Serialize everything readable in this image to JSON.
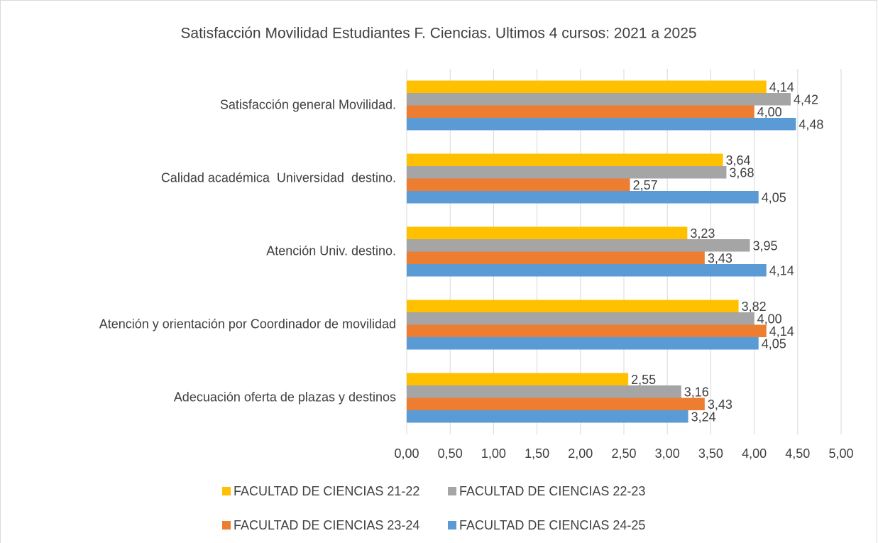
{
  "chart_data": {
    "type": "hbar",
    "title": "Satisfacción Movilidad Estudiantes F. Ciencias. Ultimos 4 cursos: 2021 a 2025",
    "categories": [
      "Satisfacción general Movilidad.",
      "Calidad académica  Universidad  destino.",
      "Atención Univ. destino.",
      "Atención y orientación por Coordinador de movilidad",
      "Adecuación oferta de plazas y destinos"
    ],
    "series": [
      {
        "name": "FACULTAD DE CIENCIAS 21-22",
        "color": "#FFC000",
        "values": [
          4.14,
          3.64,
          3.23,
          3.82,
          2.55
        ],
        "value_labels": [
          "4,14",
          "3,64",
          "3,23",
          "3,82",
          "2,55"
        ]
      },
      {
        "name": "FACULTAD DE CIENCIAS 22-23",
        "color": "#A5A5A5",
        "values": [
          4.42,
          3.68,
          3.95,
          4.0,
          3.16
        ],
        "value_labels": [
          "4,42",
          "3,68",
          "3,95",
          "4,00",
          "3,16"
        ]
      },
      {
        "name": "FACULTAD DE CIENCIAS 23-24",
        "color": "#ED7D31",
        "values": [
          4.0,
          2.57,
          3.43,
          4.14,
          3.43
        ],
        "value_labels": [
          "4,00",
          "2,57",
          "3,43",
          "4,14",
          "3,43"
        ]
      },
      {
        "name": "FACULTAD DE CIENCIAS 24-25",
        "color": "#5B9BD5",
        "values": [
          4.48,
          4.05,
          4.14,
          4.05,
          3.24
        ],
        "value_labels": [
          "4,48",
          "4,05",
          "4,14",
          "4,05",
          "3,24"
        ]
      }
    ],
    "xlim": [
      0,
      5
    ],
    "xticks": [
      {
        "value": 0,
        "label": "0,00"
      },
      {
        "value": 0.5,
        "label": "0,50"
      },
      {
        "value": 1,
        "label": "1,00"
      },
      {
        "value": 1.5,
        "label": "1,50"
      },
      {
        "value": 2,
        "label": "2,00"
      },
      {
        "value": 2.5,
        "label": "2,50"
      },
      {
        "value": 3,
        "label": "3,00"
      },
      {
        "value": 3.5,
        "label": "3,50"
      },
      {
        "value": 4,
        "label": "4,00"
      },
      {
        "value": 4.5,
        "label": "4,50"
      },
      {
        "value": 5,
        "label": "5,00"
      }
    ],
    "grid": true,
    "legend": "bottom"
  }
}
